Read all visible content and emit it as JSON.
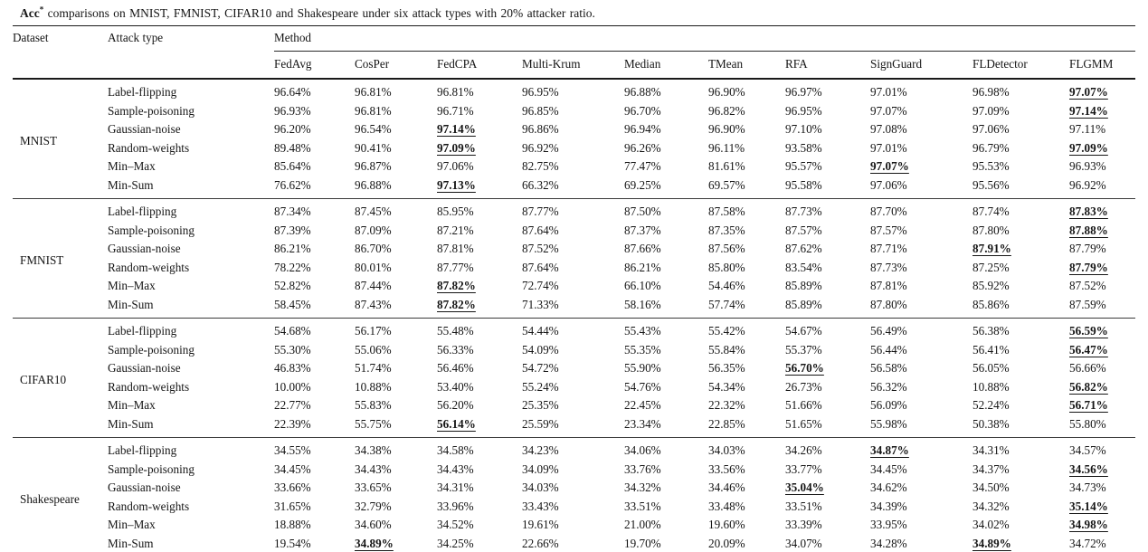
{
  "caption": {
    "acc": "Acc",
    "sup": "*",
    "rest": " comparisons on MNIST, FMNIST, CIFAR10 and Shakespeare under six attack types with 20% attacker ratio."
  },
  "header": {
    "dataset": "Dataset",
    "attack_type": "Attack type",
    "method_group": "Method",
    "methods": [
      "FedAvg",
      "CosPer",
      "FedCPA",
      "Multi-Krum",
      "Median",
      "TMean",
      "RFA",
      "SignGuard",
      "FLDetector",
      "FLGMM"
    ]
  },
  "chart_data": {
    "type": "table",
    "title": "Acc* comparisons on MNIST, FMNIST, CIFAR10 and Shakespeare under six attack types with 20% attacker ratio.",
    "columns": [
      "Dataset",
      "Attack type",
      "FedAvg",
      "CosPer",
      "FedCPA",
      "Multi-Krum",
      "Median",
      "TMean",
      "RFA",
      "SignGuard",
      "FLDetector",
      "FLGMM"
    ]
  },
  "sections": [
    {
      "dataset": "MNIST",
      "rows": [
        {
          "attack": "Label-flipping",
          "values": [
            "96.64%",
            "96.81%",
            "96.81%",
            "96.95%",
            "96.88%",
            "96.90%",
            "96.97%",
            "97.01%",
            "96.98%",
            "97.07%"
          ],
          "best": [
            9
          ]
        },
        {
          "attack": "Sample-poisoning",
          "values": [
            "96.93%",
            "96.81%",
            "96.71%",
            "96.85%",
            "96.70%",
            "96.82%",
            "96.95%",
            "97.07%",
            "97.09%",
            "97.14%"
          ],
          "best": [
            9
          ]
        },
        {
          "attack": "Gaussian-noise",
          "values": [
            "96.20%",
            "96.54%",
            "97.14%",
            "96.86%",
            "96.94%",
            "96.90%",
            "97.10%",
            "97.08%",
            "97.06%",
            "97.11%"
          ],
          "best": [
            2
          ]
        },
        {
          "attack": "Random-weights",
          "values": [
            "89.48%",
            "90.41%",
            "97.09%",
            "96.92%",
            "96.26%",
            "96.11%",
            "93.58%",
            "97.01%",
            "96.79%",
            "97.09%"
          ],
          "best": [
            2,
            9
          ]
        },
        {
          "attack": "Min–Max",
          "values": [
            "85.64%",
            "96.87%",
            "97.06%",
            "82.75%",
            "77.47%",
            "81.61%",
            "95.57%",
            "97.07%",
            "95.53%",
            "96.93%"
          ],
          "best": [
            7
          ]
        },
        {
          "attack": "Min-Sum",
          "values": [
            "76.62%",
            "96.88%",
            "97.13%",
            "66.32%",
            "69.25%",
            "69.57%",
            "95.58%",
            "97.06%",
            "95.56%",
            "96.92%"
          ],
          "best": [
            2
          ]
        }
      ]
    },
    {
      "dataset": "FMNIST",
      "rows": [
        {
          "attack": "Label-flipping",
          "values": [
            "87.34%",
            "87.45%",
            "85.95%",
            "87.77%",
            "87.50%",
            "87.58%",
            "87.73%",
            "87.70%",
            "87.74%",
            "87.83%"
          ],
          "best": [
            9
          ]
        },
        {
          "attack": "Sample-poisoning",
          "values": [
            "87.39%",
            "87.09%",
            "87.21%",
            "87.64%",
            "87.37%",
            "87.35%",
            "87.57%",
            "87.57%",
            "87.80%",
            "87.88%"
          ],
          "best": [
            9
          ]
        },
        {
          "attack": "Gaussian-noise",
          "values": [
            "86.21%",
            "86.70%",
            "87.81%",
            "87.52%",
            "87.66%",
            "87.56%",
            "87.62%",
            "87.71%",
            "87.91%",
            "87.79%"
          ],
          "best": [
            8
          ]
        },
        {
          "attack": "Random-weights",
          "values": [
            "78.22%",
            "80.01%",
            "87.77%",
            "87.64%",
            "86.21%",
            "85.80%",
            "83.54%",
            "87.73%",
            "87.25%",
            "87.79%"
          ],
          "best": [
            9
          ]
        },
        {
          "attack": "Min–Max",
          "values": [
            "52.82%",
            "87.44%",
            "87.82%",
            "72.74%",
            "66.10%",
            "54.46%",
            "85.89%",
            "87.81%",
            "85.92%",
            "87.52%"
          ],
          "best": [
            2
          ]
        },
        {
          "attack": "Min-Sum",
          "values": [
            "58.45%",
            "87.43%",
            "87.82%",
            "71.33%",
            "58.16%",
            "57.74%",
            "85.89%",
            "87.80%",
            "85.86%",
            "87.59%"
          ],
          "best": [
            2
          ]
        }
      ]
    },
    {
      "dataset": "CIFAR10",
      "rows": [
        {
          "attack": "Label-flipping",
          "values": [
            "54.68%",
            "56.17%",
            "55.48%",
            "54.44%",
            "55.43%",
            "55.42%",
            "54.67%",
            "56.49%",
            "56.38%",
            "56.59%"
          ],
          "best": [
            9
          ]
        },
        {
          "attack": "Sample-poisoning",
          "values": [
            "55.30%",
            "55.06%",
            "56.33%",
            "54.09%",
            "55.35%",
            "55.84%",
            "55.37%",
            "56.44%",
            "56.41%",
            "56.47%"
          ],
          "best": [
            9
          ]
        },
        {
          "attack": "Gaussian-noise",
          "values": [
            "46.83%",
            "51.74%",
            "56.46%",
            "54.72%",
            "55.90%",
            "56.35%",
            "56.70%",
            "56.58%",
            "56.05%",
            "56.66%"
          ],
          "best": [
            6
          ]
        },
        {
          "attack": "Random-weights",
          "values": [
            "10.00%",
            "10.88%",
            "53.40%",
            "55.24%",
            "54.76%",
            "54.34%",
            "26.73%",
            "56.32%",
            "10.88%",
            "56.82%"
          ],
          "best": [
            9
          ]
        },
        {
          "attack": "Min–Max",
          "values": [
            "22.77%",
            "55.83%",
            "56.20%",
            "25.35%",
            "22.45%",
            "22.32%",
            "51.66%",
            "56.09%",
            "52.24%",
            "56.71%"
          ],
          "best": [
            9
          ]
        },
        {
          "attack": "Min-Sum",
          "values": [
            "22.39%",
            "55.75%",
            "56.14%",
            "25.59%",
            "23.34%",
            "22.85%",
            "51.65%",
            "55.98%",
            "50.38%",
            "55.80%"
          ],
          "best": [
            2
          ]
        }
      ]
    },
    {
      "dataset": "Shakespeare",
      "rows": [
        {
          "attack": "Label-flipping",
          "values": [
            "34.55%",
            "34.38%",
            "34.58%",
            "34.23%",
            "34.06%",
            "34.03%",
            "34.26%",
            "34.87%",
            "34.31%",
            "34.57%"
          ],
          "best": [
            7
          ]
        },
        {
          "attack": "Sample-poisoning",
          "values": [
            "34.45%",
            "34.43%",
            "34.43%",
            "34.09%",
            "33.76%",
            "33.56%",
            "33.77%",
            "34.45%",
            "34.37%",
            "34.56%"
          ],
          "best": [
            9
          ]
        },
        {
          "attack": "Gaussian-noise",
          "values": [
            "33.66%",
            "33.65%",
            "34.31%",
            "34.03%",
            "34.32%",
            "34.46%",
            "35.04%",
            "34.62%",
            "34.50%",
            "34.73%"
          ],
          "best": [
            6
          ]
        },
        {
          "attack": "Random-weights",
          "values": [
            "31.65%",
            "32.79%",
            "33.96%",
            "33.43%",
            "33.51%",
            "33.48%",
            "33.51%",
            "34.39%",
            "34.32%",
            "35.14%"
          ],
          "best": [
            9
          ]
        },
        {
          "attack": "Min–Max",
          "values": [
            "18.88%",
            "34.60%",
            "34.52%",
            "19.61%",
            "21.00%",
            "19.60%",
            "33.39%",
            "33.95%",
            "34.02%",
            "34.98%"
          ],
          "best": [
            9
          ]
        },
        {
          "attack": "Min-Sum",
          "values": [
            "19.54%",
            "34.89%",
            "34.25%",
            "22.66%",
            "19.70%",
            "20.09%",
            "34.07%",
            "34.28%",
            "34.89%",
            "34.72%"
          ],
          "best": [
            1,
            8
          ]
        }
      ]
    }
  ]
}
